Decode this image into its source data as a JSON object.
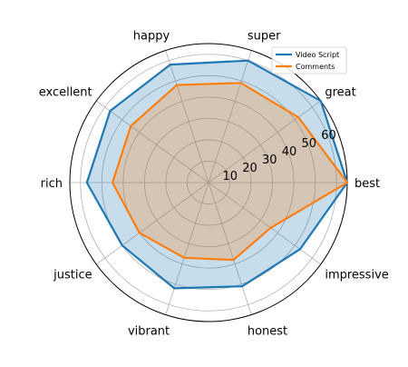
{
  "chart_data": {
    "type": "radar",
    "categories": [
      "best",
      "great",
      "super",
      "happy",
      "excellent",
      "rich",
      "justice",
      "vibrant",
      "honest",
      "impressive"
    ],
    "radial_ticks": [
      "10",
      "20",
      "30",
      "40",
      "50",
      "60"
    ],
    "rmax": 65,
    "grid": true,
    "legend_position": "top-right",
    "series": [
      {
        "name": "Video Script",
        "color": "#1f77b4",
        "fill": "#1f77b4",
        "values": [
          65,
          65,
          60,
          58,
          57,
          57,
          50,
          52,
          51,
          53
        ]
      },
      {
        "name": "Comments",
        "color": "#ff7f0e",
        "fill": "#ff7f0e",
        "values": [
          65,
          52,
          49,
          48,
          45,
          45,
          40,
          37,
          38,
          36
        ]
      }
    ]
  }
}
